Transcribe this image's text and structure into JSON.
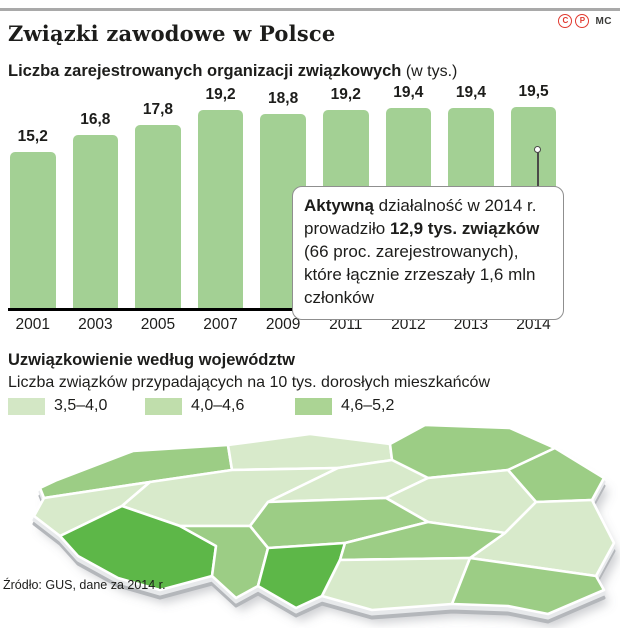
{
  "header": {
    "title": "Związki zawodowe w Polsce",
    "copyright_c": "C",
    "copyright_p": "P",
    "credit": "MC"
  },
  "chart": {
    "title_bold": "Liczba zarejestrowanych organizacji związkowych",
    "title_unit": " (w tys.)"
  },
  "chart_data": [
    {
      "type": "bar",
      "title": "Liczba zarejestrowanych organizacji związkowych (w tys.)",
      "categories": [
        "2001",
        "2003",
        "2005",
        "2007",
        "2009",
        "2011",
        "2012",
        "2013",
        "2014"
      ],
      "values": [
        15.2,
        16.8,
        17.8,
        19.2,
        18.8,
        19.2,
        19.4,
        19.4,
        19.5
      ],
      "value_labels": [
        "15,2",
        "16,8",
        "17,8",
        "19,2",
        "18,8",
        "19,2",
        "19,4",
        "19,4",
        "19,5"
      ],
      "xlabel": "",
      "ylabel": "w tys.",
      "ylim": [
        0,
        19.5
      ],
      "grid": false,
      "bar_color": "#a3d094",
      "legend_position": "none"
    },
    {
      "type": "heatmap",
      "title": "Uzwiązkowienie według województw",
      "subtitle": "Liczba związków przypadających na 10 tys. dorosłych mieszkańców",
      "legend_buckets": [
        {
          "label": "3,5–4,0",
          "key": "light"
        },
        {
          "label": "4,0–4,6",
          "key": "medium"
        },
        {
          "label": "4,6–5,2",
          "key": "dark"
        }
      ],
      "regions": [
        {
          "name": "zachodniopomorskie",
          "bucket": "medium",
          "range": "4,0–4,6"
        },
        {
          "name": "pomorskie",
          "bucket": "light",
          "range": "3,5–4,0"
        },
        {
          "name": "warminsko-mazurskie",
          "bucket": "medium",
          "range": "4,0–4,6"
        },
        {
          "name": "podlaskie",
          "bucket": "medium",
          "range": "4,0–4,6"
        },
        {
          "name": "lubuskie",
          "bucket": "light",
          "range": "3,5–4,0"
        },
        {
          "name": "wielkopolskie",
          "bucket": "light",
          "range": "3,5–4,0"
        },
        {
          "name": "kujawsko-pomorskie",
          "bucket": "light",
          "range": "3,5–4,0"
        },
        {
          "name": "mazowieckie",
          "bucket": "light",
          "range": "3,5–4,0"
        },
        {
          "name": "lodzkie",
          "bucket": "medium",
          "range": "4,0–4,6"
        },
        {
          "name": "lubelskie",
          "bucket": "light",
          "range": "3,5–4,0"
        },
        {
          "name": "dolnoslaskie",
          "bucket": "dark",
          "range": "4,6–5,2"
        },
        {
          "name": "opolskie",
          "bucket": "medium",
          "range": "4,0–4,6"
        },
        {
          "name": "slaskie",
          "bucket": "dark",
          "range": "4,6–5,2"
        },
        {
          "name": "swietokrzyskie",
          "bucket": "medium",
          "range": "4,0–4,6"
        },
        {
          "name": "malopolskie",
          "bucket": "light",
          "range": "3,5–4,0"
        },
        {
          "name": "podkarpackie",
          "bucket": "medium",
          "range": "4,0–4,6"
        }
      ]
    }
  ],
  "annotation": {
    "segments": [
      {
        "text": "Aktywną",
        "bold": true
      },
      {
        "text": " działalność w 2014 r. prowadziło ",
        "bold": false
      },
      {
        "text": "12,9 tys. związków",
        "bold": true
      },
      {
        "text": " (66 proc. zarejestrowanych), które łącznie zrzeszały 1,6 mln członków",
        "bold": false
      }
    ]
  },
  "map_section": {
    "title": "Uzwiązkowienie według województw",
    "subtitle": "Liczba związków przypadających na 10 tys. dorosłych mieszkańców",
    "legend_swatch_colors": [
      "#d3e7c5",
      "#c0deac",
      "#abd494"
    ],
    "bucket_colors": {
      "light": "#d8eacb",
      "medium": "#9ccd85",
      "dark": "#5db748"
    }
  },
  "source": "Źródło: GUS, dane za 2014 r."
}
